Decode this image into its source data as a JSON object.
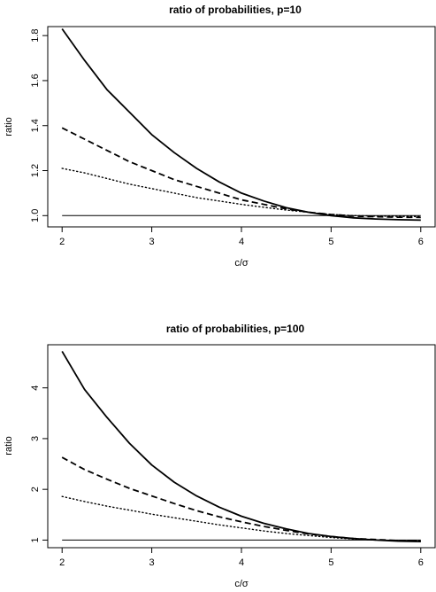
{
  "chart_data": [
    {
      "type": "line",
      "title": "ratio of probabilities, p=10",
      "xlabel": "c/σ",
      "ylabel": "ratio",
      "xlim": [
        1.84,
        6.16
      ],
      "ylim": [
        0.95,
        1.84
      ],
      "x_ticks": [
        "2",
        "3",
        "4",
        "5",
        "6"
      ],
      "y_ticks": [
        "1.0",
        "1.2",
        "1.4",
        "1.6",
        "1.8"
      ],
      "x": [
        2,
        2.25,
        2.5,
        2.75,
        3,
        3.25,
        3.5,
        3.75,
        4,
        4.25,
        4.5,
        4.75,
        5,
        5.25,
        5.5,
        5.75,
        6
      ],
      "series": [
        {
          "line_style": "solid",
          "values": [
            1.83,
            1.69,
            1.56,
            1.46,
            1.36,
            1.28,
            1.21,
            1.15,
            1.1,
            1.065,
            1.035,
            1.015,
            1.0,
            0.99,
            0.985,
            0.982,
            0.98
          ]
        },
        {
          "line_style": "dashed",
          "values": [
            1.39,
            1.34,
            1.29,
            1.24,
            1.2,
            1.16,
            1.13,
            1.1,
            1.07,
            1.05,
            1.03,
            1.015,
            1.005,
            0.998,
            0.995,
            0.993,
            0.992
          ]
        },
        {
          "line_style": "dotted",
          "values": [
            1.21,
            1.19,
            1.165,
            1.14,
            1.12,
            1.1,
            1.08,
            1.065,
            1.05,
            1.037,
            1.025,
            1.015,
            1.005,
            1.0,
            0.998,
            0.997,
            0.996
          ]
        },
        {
          "line_style": "thin",
          "values": [
            1.0,
            1.0,
            1.0,
            1.0,
            1.0,
            1.0,
            1.0,
            1.0,
            1.0,
            1.0,
            1.0,
            1.0,
            1.0,
            1.0,
            1.0,
            1.0,
            1.0
          ]
        }
      ]
    },
    {
      "type": "line",
      "title": "ratio of probabilities, p=100",
      "xlabel": "c/σ",
      "ylabel": "ratio",
      "xlim": [
        1.84,
        6.16
      ],
      "ylim": [
        0.85,
        4.85
      ],
      "x_ticks": [
        "2",
        "3",
        "4",
        "5",
        "6"
      ],
      "y_ticks": [
        "1",
        "2",
        "3",
        "4"
      ],
      "x": [
        2,
        2.25,
        2.5,
        2.75,
        3,
        3.25,
        3.5,
        3.75,
        4,
        4.25,
        4.5,
        4.75,
        5,
        5.25,
        5.5,
        5.75,
        6
      ],
      "series": [
        {
          "line_style": "solid",
          "values": [
            4.72,
            3.97,
            3.42,
            2.91,
            2.48,
            2.14,
            1.87,
            1.65,
            1.47,
            1.33,
            1.22,
            1.13,
            1.07,
            1.03,
            1.0,
            0.98,
            0.97
          ]
        },
        {
          "line_style": "dashed",
          "values": [
            2.63,
            2.39,
            2.2,
            2.02,
            1.87,
            1.72,
            1.58,
            1.46,
            1.36,
            1.27,
            1.19,
            1.12,
            1.07,
            1.03,
            1.01,
            0.99,
            0.98
          ]
        },
        {
          "line_style": "dotted",
          "values": [
            1.86,
            1.76,
            1.67,
            1.59,
            1.51,
            1.44,
            1.37,
            1.3,
            1.24,
            1.18,
            1.13,
            1.09,
            1.05,
            1.02,
            1.0,
            0.99,
            0.99
          ]
        },
        {
          "line_style": "thin",
          "values": [
            1.0,
            1.0,
            1.0,
            1.0,
            1.0,
            1.0,
            1.0,
            1.0,
            1.0,
            1.0,
            1.0,
            1.0,
            1.0,
            1.0,
            1.0,
            1.0,
            1.0
          ]
        }
      ]
    }
  ],
  "colors": {
    "line": "#000000",
    "background": "#ffffff"
  }
}
